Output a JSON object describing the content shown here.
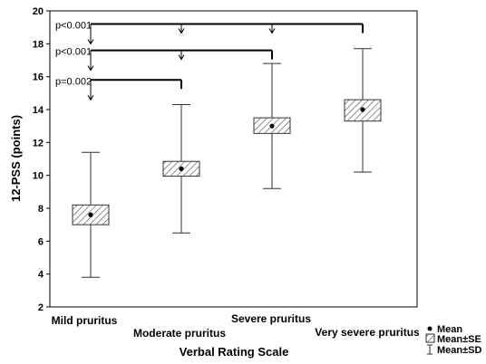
{
  "chart_data": {
    "type": "box",
    "title": "",
    "xlabel": "Verbal Rating Scale",
    "ylabel": "12-PSS (points)",
    "ylim": [
      2,
      20
    ],
    "yticks": [
      2,
      4,
      6,
      8,
      10,
      12,
      14,
      16,
      18,
      20
    ],
    "categories": [
      "Mild pruritus",
      "Moderate pruritus",
      "Severe pruritus",
      "Very severe pruritus"
    ],
    "mean": [
      7.6,
      10.4,
      13.0,
      14.0
    ],
    "se_low": [
      7.0,
      9.95,
      12.55,
      13.3
    ],
    "se_high": [
      8.2,
      10.85,
      13.5,
      14.6
    ],
    "sd_low": [
      3.8,
      6.5,
      9.2,
      10.2
    ],
    "sd_high": [
      11.4,
      14.3,
      16.8,
      17.7
    ],
    "annotations": [
      {
        "text": "p<0.001",
        "from": 0,
        "to": 3,
        "y": 19.2
      },
      {
        "text": "p<0.001",
        "from": 0,
        "to": 2,
        "y": 17.6
      },
      {
        "text": "p=0.002",
        "from": 0,
        "to": 1,
        "y": 15.8
      }
    ],
    "legend": {
      "position": "bottom-right",
      "items": [
        "Mean",
        "Mean±SE",
        "Mean±SD"
      ]
    },
    "grid": false
  }
}
